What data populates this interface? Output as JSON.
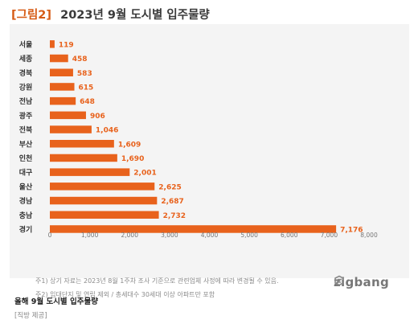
{
  "header": {
    "figure_label": "[그림2]",
    "title": "2023년 9월 도시별 입주물량"
  },
  "chart_data": {
    "type": "bar",
    "orientation": "horizontal",
    "categories": [
      "서울",
      "세종",
      "경북",
      "강원",
      "전남",
      "광주",
      "전북",
      "부산",
      "인천",
      "대구",
      "울산",
      "경남",
      "충남",
      "경기"
    ],
    "values": [
      119,
      458,
      583,
      615,
      648,
      906,
      1046,
      1609,
      1690,
      2001,
      2625,
      2687,
      2732,
      7176
    ],
    "value_labels": [
      "119",
      "458",
      "583",
      "615",
      "648",
      "906",
      "1,046",
      "1,609",
      "1,690",
      "2,001",
      "2,625",
      "2,687",
      "2,732",
      "7,176"
    ],
    "xlim": [
      0,
      8000
    ],
    "xticks": [
      0,
      1000,
      2000,
      3000,
      4000,
      5000,
      6000,
      7000,
      8000
    ],
    "xtick_labels": [
      "0",
      "1,000",
      "2,000",
      "3,000",
      "4,000",
      "5,000",
      "6,000",
      "7,000",
      "8,000"
    ],
    "title": "2023년 9월 도시별 입주물량",
    "bar_color": "#e8621c",
    "grid": false
  },
  "notes": [
    "주1) 상기 자료는 2023년 8월 1주차 조사 기준으로 관련업체 사정에 따라 변경될 수 있음.",
    "주2) 임대단지 및 연립 제외 / 총세대수 30세대 이상 아파트만 포함"
  ],
  "logo": {
    "text": "zigbang",
    "icon": "zigbang-logo-icon"
  },
  "caption": "올해 9월 도시별 입주물량",
  "credit": "[직방 제공]"
}
